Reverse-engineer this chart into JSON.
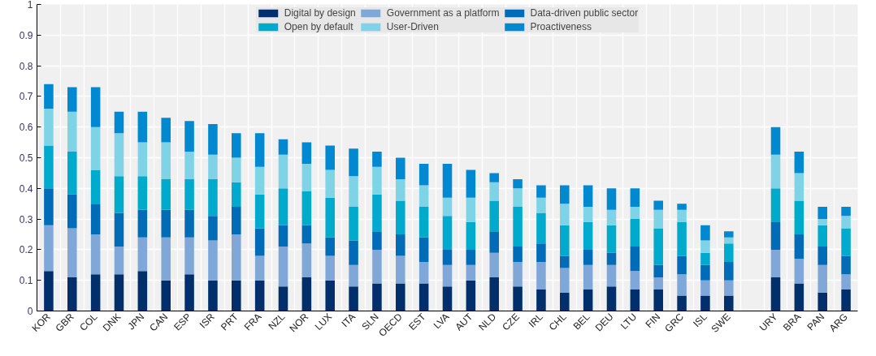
{
  "chart_data": {
    "type": "bar",
    "stacked": true,
    "legend": "top",
    "grid": true,
    "categories": [
      "KOR",
      "GBR",
      "COL",
      "DNK",
      "JPN",
      "CAN",
      "ESP",
      "ISR",
      "PRT",
      "FRA",
      "NZL",
      "NOR",
      "LUX",
      "ITA",
      "SLN",
      "OECD",
      "EST",
      "LVA",
      "AUT",
      "NLD",
      "CZE",
      "IRL",
      "CHL",
      "BEL",
      "DEU",
      "LTU",
      "FIN",
      "GRC",
      "ISL",
      "SWE",
      null,
      "URY",
      "BRA",
      "PAN",
      "ARG"
    ],
    "ylim": [
      0,
      1
    ],
    "yticks": [
      0,
      0.1,
      0.2,
      0.3,
      0.4,
      0.5,
      0.6,
      0.7,
      0.8,
      0.9,
      1
    ],
    "series": [
      {
        "name": "Digital by design",
        "color": "#002f6c",
        "values": [
          0.13,
          0.11,
          0.12,
          0.12,
          0.13,
          0.1,
          0.12,
          0.1,
          0.1,
          0.1,
          0.08,
          0.11,
          0.1,
          0.08,
          0.09,
          0.09,
          0.09,
          0.08,
          0.1,
          0.11,
          0.08,
          0.07,
          0.06,
          0.07,
          0.08,
          0.07,
          0.07,
          0.05,
          0.05,
          0.05,
          null,
          0.11,
          0.09,
          0.06,
          0.07
        ]
      },
      {
        "name": "Government as a platform",
        "color": "#7fa8d9",
        "values": [
          0.15,
          0.16,
          0.13,
          0.09,
          0.11,
          0.14,
          0.12,
          0.13,
          0.15,
          0.08,
          0.13,
          0.11,
          0.08,
          0.07,
          0.11,
          0.09,
          0.07,
          0.07,
          0.05,
          0.08,
          0.08,
          0.09,
          0.08,
          0.08,
          0.07,
          0.06,
          0.04,
          0.07,
          0.05,
          0.05,
          null,
          0.09,
          0.08,
          0.09,
          0.05
        ]
      },
      {
        "name": "Data-driven public sector",
        "color": "#006bb6",
        "values": [
          0.12,
          0.11,
          0.1,
          0.11,
          0.09,
          0.09,
          0.09,
          0.08,
          0.09,
          0.09,
          0.07,
          0.06,
          0.06,
          0.08,
          0.06,
          0.07,
          0.08,
          0.05,
          0.05,
          0.07,
          0.05,
          0.06,
          0.04,
          0.05,
          0.04,
          0.08,
          0.04,
          0.06,
          0.05,
          0.06,
          null,
          0.09,
          0.08,
          0.06,
          0.06
        ]
      },
      {
        "name": "Open by default",
        "color": "#00aacc",
        "values": [
          0.14,
          0.14,
          0.11,
          0.12,
          0.11,
          0.1,
          0.1,
          0.12,
          0.08,
          0.11,
          0.12,
          0.11,
          0.13,
          0.11,
          0.12,
          0.11,
          0.1,
          0.11,
          0.09,
          0.1,
          0.13,
          0.1,
          0.1,
          0.09,
          0.09,
          0.09,
          0.12,
          0.11,
          0.04,
          0.06,
          null,
          0.11,
          0.11,
          0.07,
          0.09
        ]
      },
      {
        "name": "User-Driven",
        "color": "#7fd3e6",
        "values": [
          0.12,
          0.13,
          0.14,
          0.14,
          0.11,
          0.12,
          0.09,
          0.08,
          0.08,
          0.09,
          0.11,
          0.09,
          0.09,
          0.1,
          0.09,
          0.07,
          0.07,
          0.06,
          0.08,
          0.06,
          0.06,
          0.05,
          0.07,
          0.05,
          0.05,
          0.04,
          0.06,
          0.04,
          0.04,
          0.02,
          null,
          0.11,
          0.09,
          0.02,
          0.04
        ]
      },
      {
        "name": "Proactiveness",
        "color": "#0088d1",
        "values": [
          0.08,
          0.08,
          0.13,
          0.07,
          0.1,
          0.08,
          0.1,
          0.1,
          0.08,
          0.11,
          0.05,
          0.07,
          0.08,
          0.09,
          0.05,
          0.07,
          0.07,
          0.11,
          0.09,
          0.03,
          0.03,
          0.04,
          0.06,
          0.07,
          0.07,
          0.06,
          0.03,
          0.02,
          0.05,
          0.02,
          null,
          0.09,
          0.07,
          0.04,
          0.03
        ]
      }
    ]
  }
}
